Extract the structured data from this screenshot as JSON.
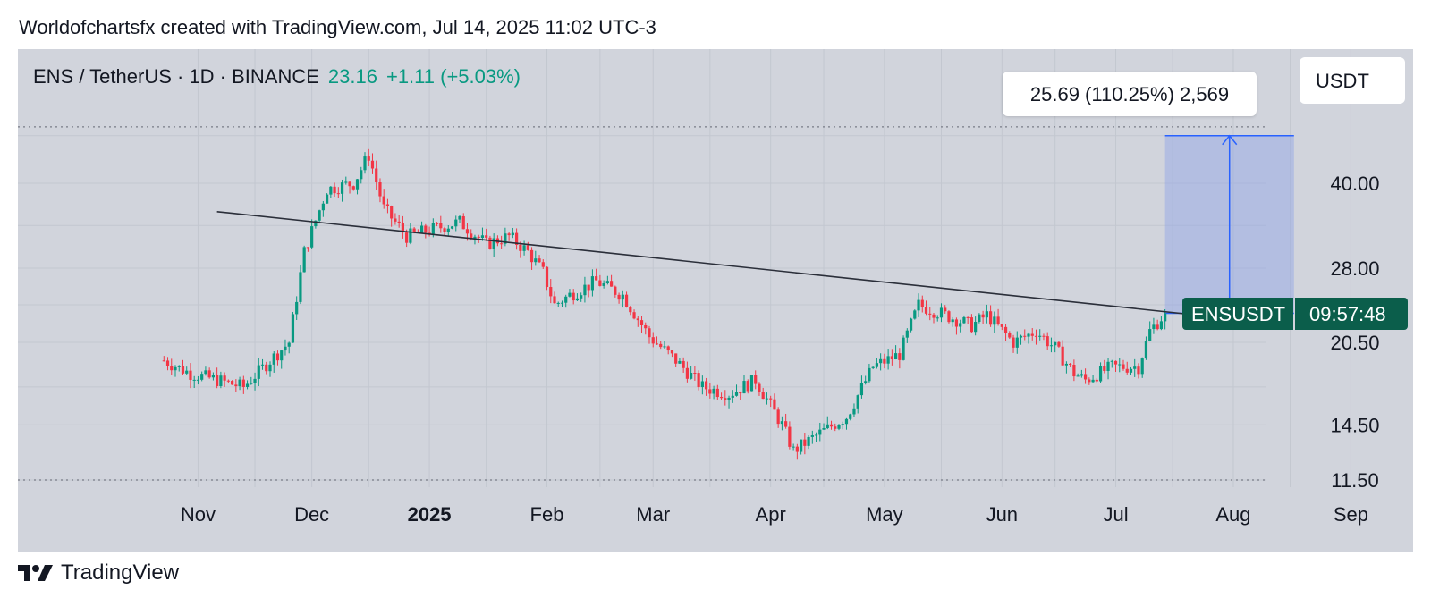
{
  "header": {
    "attribution": "Worldofchartsfx created with TradingView.com, Jul 14, 2025 11:02 UTC-3"
  },
  "symbol": {
    "title": "ENS / TetherUS · 1D · BINANCE",
    "price": "23.16",
    "change": "+1.11 (+5.03%)"
  },
  "currency_button": {
    "label": "USDT"
  },
  "measure_tooltip": {
    "text": "25.69 (110.25%) 2,569"
  },
  "price_tag": {
    "symbol": "ENSUSDT",
    "countdown": "09:57:48"
  },
  "footer": {
    "brand": "TradingView"
  },
  "colors": {
    "panel_bg": "#d1d4dc",
    "up": "#089981",
    "down": "#f23645",
    "measure_fill": "#8fa4e6",
    "measure_line": "#2962ff",
    "trendline": "#2a2e39",
    "tag_bg": "#0b5e4b"
  },
  "chart_data": {
    "type": "candlestick",
    "title": "ENS / TetherUS · 1D · BINANCE",
    "scale": "log",
    "y_ticks": [
      "40.00",
      "28.00",
      "20.50",
      "14.50",
      "11.50"
    ],
    "x_ticks": [
      "Nov",
      "Dec",
      "2025",
      "Feb",
      "Mar",
      "Apr",
      "May",
      "Jun",
      "Jul",
      "Aug",
      "Sep"
    ],
    "y_range": [
      11.0,
      60.0
    ],
    "grid": true,
    "series": [
      {
        "name": "ENSUSDT",
        "dates": [
          "2024-10-23",
          "2024-10-30",
          "2024-11-06",
          "2024-11-13",
          "2024-11-20",
          "2024-11-25",
          "2024-11-29",
          "2024-12-05",
          "2024-12-12",
          "2024-12-16",
          "2024-12-20",
          "2024-12-26",
          "2025-01-02",
          "2025-01-09",
          "2025-01-16",
          "2025-01-22",
          "2025-01-27",
          "2025-01-31",
          "2025-02-03",
          "2025-02-07",
          "2025-02-14",
          "2025-02-21",
          "2025-02-28",
          "2025-03-07",
          "2025-03-14",
          "2025-03-21",
          "2025-03-28",
          "2025-04-04",
          "2025-04-07",
          "2025-04-14",
          "2025-04-21",
          "2025-04-28",
          "2025-05-05",
          "2025-05-10",
          "2025-05-17",
          "2025-05-24",
          "2025-05-28",
          "2025-06-04",
          "2025-06-10",
          "2025-06-15",
          "2025-06-20",
          "2025-06-23",
          "2025-06-30",
          "2025-07-07",
          "2025-07-10",
          "2025-07-14"
        ],
        "close": [
          19.0,
          18.0,
          17.5,
          17.0,
          19.0,
          20.5,
          30.0,
          39.0,
          40.0,
          45.0,
          36.0,
          32.0,
          33.0,
          34.0,
          31.0,
          32.0,
          30.0,
          27.5,
          24.0,
          25.0,
          26.5,
          25.0,
          21.0,
          19.0,
          17.0,
          16.5,
          17.5,
          14.5,
          13.0,
          14.0,
          15.0,
          18.5,
          19.5,
          24.0,
          23.0,
          22.0,
          23.0,
          20.5,
          21.5,
          20.0,
          18.0,
          17.5,
          18.5,
          18.5,
          21.5,
          23.16
        ]
      }
    ],
    "trendline": {
      "start": [
        "2024-11-06",
        35.5
      ],
      "end": [
        "2025-08-15",
        22.1
      ]
    },
    "measure": {
      "from_price": 23.16,
      "to_price": 48.85,
      "from_date": "2025-07-14",
      "to_date": "2025-08-17",
      "label": "25.69 (110.25%) 2,569"
    },
    "reference_levels": [
      50.7,
      11.5
    ]
  }
}
